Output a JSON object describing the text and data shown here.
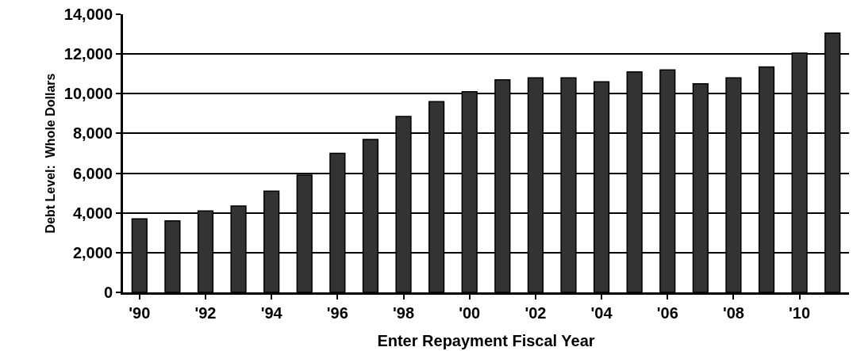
{
  "chart_data": {
    "type": "bar",
    "xlabel": "Enter Repayment Fiscal Year",
    "ylabel": "Debt Level:  Whole Dollars",
    "categories": [
      "'90",
      null,
      "'92",
      null,
      "'94",
      null,
      "'96",
      null,
      "'98",
      null,
      "'00",
      null,
      "'02",
      null,
      "'04",
      null,
      "'06",
      null,
      "'08",
      null,
      "'10",
      null
    ],
    "values": [
      3700,
      3600,
      4100,
      4350,
      5100,
      5900,
      7000,
      7700,
      8850,
      9600,
      10100,
      10700,
      10800,
      10800,
      10600,
      11100,
      11200,
      10500,
      10800,
      11350,
      12050,
      13050
    ],
    "color": "#333333",
    "ylim": [
      0,
      14000
    ],
    "yticks": [
      {
        "value": 0,
        "label": "0"
      },
      {
        "value": 2000,
        "label": "2,000"
      },
      {
        "value": 4000,
        "label": "4,000"
      },
      {
        "value": 6000,
        "label": "6,000"
      },
      {
        "value": 8000,
        "label": "8,000"
      },
      {
        "value": 10000,
        "label": "10,000"
      },
      {
        "value": 12000,
        "label": "12,000"
      },
      {
        "value": 14000,
        "label": "14,000"
      }
    ],
    "grid": "y",
    "legend": false
  }
}
